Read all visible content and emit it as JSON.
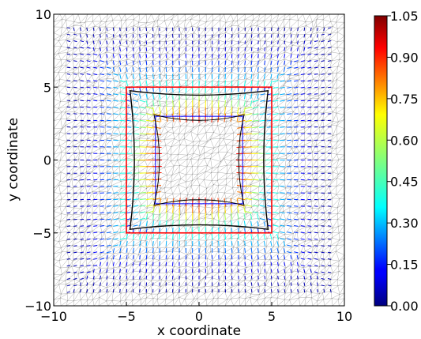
{
  "chart_data": {
    "type": "other",
    "plot": "finite-element mesh with color-mapped displacement vectors",
    "xlabel": "x coordinate",
    "ylabel": "y coordinate",
    "xlim": [
      -10,
      10
    ],
    "ylim": [
      -10,
      10
    ],
    "xticks": [
      "−10",
      "−5",
      "0",
      "5",
      "10"
    ],
    "yticks": [
      "−10",
      "−5",
      "0",
      "5",
      "10"
    ],
    "xtick_values": [
      -10,
      -5,
      0,
      5,
      10
    ],
    "ytick_values": [
      -10,
      -5,
      0,
      5,
      10
    ],
    "grid": false,
    "mesh_color": "#000000",
    "outer_square": {
      "x": [
        -5,
        5
      ],
      "y": [
        -5,
        5
      ],
      "color": "#ff0000"
    },
    "inner_square": {
      "x": [
        -3,
        3
      ],
      "y": [
        -3,
        3
      ],
      "color": "#0000ff"
    },
    "deformed_boundary_color": "#000000",
    "colorbar": {
      "range": [
        0.0,
        1.05
      ],
      "ticks": [
        "0.00",
        "0.15",
        "0.30",
        "0.45",
        "0.60",
        "0.75",
        "0.90",
        "1.05"
      ],
      "tick_values": [
        0.0,
        0.15,
        0.3,
        0.45,
        0.6,
        0.75,
        0.9,
        1.05
      ],
      "colormap": "jet",
      "placement": "right"
    }
  }
}
